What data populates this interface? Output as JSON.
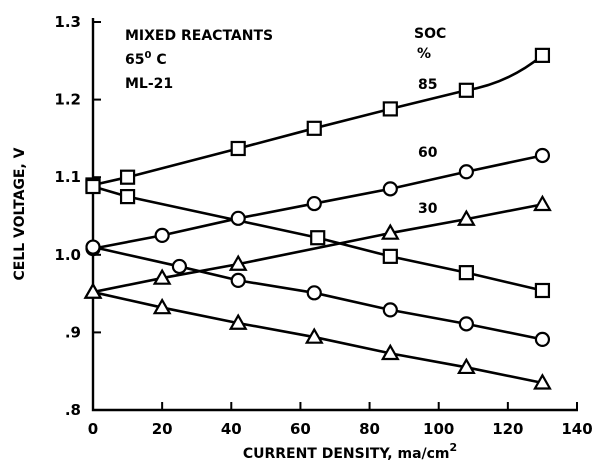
{
  "chart_data": {
    "type": "line",
    "title": "",
    "xlabel": "CURRENT DENSITY, ma/cm",
    "xlabel_sup": "2",
    "ylabel": "CELL VOLTAGE, V",
    "xlim": [
      0,
      140
    ],
    "ylim": [
      0.8,
      1.3
    ],
    "xticks": [
      0,
      20,
      40,
      60,
      80,
      100,
      120,
      140
    ],
    "xtick_labels": [
      "0",
      "20",
      "40",
      "60",
      "80",
      "100",
      "120",
      "140"
    ],
    "yticks": [
      0.8,
      0.9,
      1.0,
      1.1,
      1.2,
      1.3
    ],
    "ytick_labels": [
      ".8",
      ".9",
      "1.0",
      "1.1",
      "1.2",
      "1.3"
    ],
    "grid": false,
    "annotations": {
      "line1": "MIXED REACTANTS",
      "line2_main": "65",
      "line2_sup": "0",
      "line2_rest": " C",
      "line3": "ML-21",
      "soc_header": "SOC",
      "soc_unit": "%"
    },
    "series": [
      {
        "name": "85",
        "marker": "square",
        "branch": "charge",
        "x": [
          0,
          10,
          42,
          64,
          86,
          108,
          130
        ],
        "y": [
          1.09,
          1.1,
          1.137,
          1.163,
          1.188,
          1.212,
          1.257
        ]
      },
      {
        "name": "85",
        "marker": "square",
        "branch": "discharge",
        "x": [
          0,
          10,
          65,
          86,
          108,
          130
        ],
        "y": [
          1.088,
          1.075,
          1.022,
          0.998,
          0.977,
          0.954
        ]
      },
      {
        "name": "60",
        "marker": "circle",
        "branch": "charge",
        "x": [
          0,
          20,
          42,
          64,
          86,
          108,
          130
        ],
        "y": [
          1.008,
          1.025,
          1.047,
          1.066,
          1.085,
          1.107,
          1.128
        ]
      },
      {
        "name": "60",
        "marker": "circle",
        "branch": "discharge",
        "x": [
          0,
          25,
          42,
          64,
          86,
          108,
          130
        ],
        "y": [
          1.01,
          0.985,
          0.967,
          0.951,
          0.929,
          0.911,
          0.891
        ]
      },
      {
        "name": "30",
        "marker": "triangle",
        "branch": "charge",
        "x": [
          0,
          20,
          42,
          86,
          108,
          130
        ],
        "y": [
          0.952,
          0.97,
          0.988,
          1.028,
          1.046,
          1.065
        ]
      },
      {
        "name": "30",
        "marker": "triangle",
        "branch": "discharge",
        "x": [
          0,
          20,
          42,
          64,
          86,
          108,
          130
        ],
        "y": [
          0.952,
          0.932,
          0.912,
          0.894,
          0.873,
          0.855,
          0.835
        ]
      }
    ]
  }
}
